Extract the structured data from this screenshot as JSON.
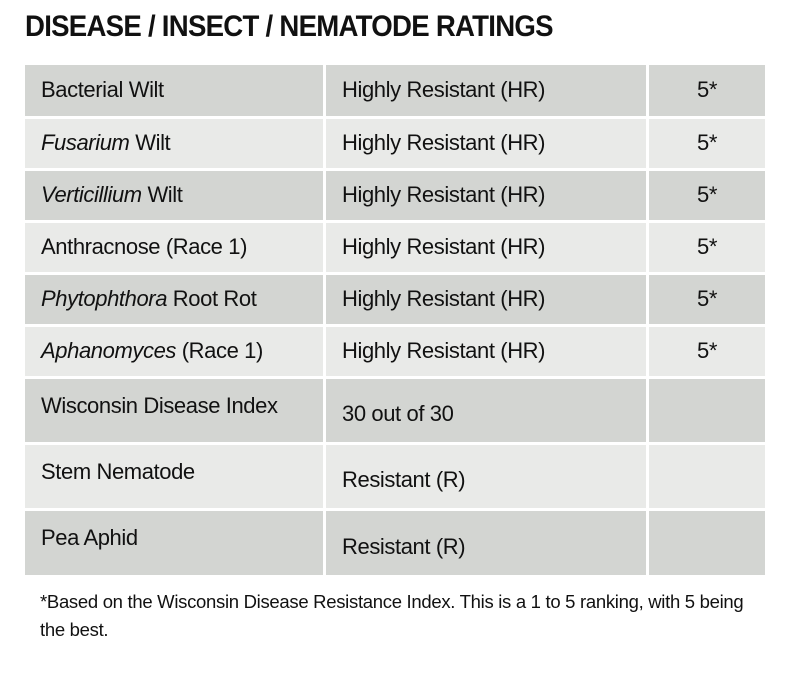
{
  "title": "DISEASE / INSECT / NEMATODE RATINGS",
  "table": {
    "rows": [
      {
        "name": [
          {
            "text": "Bacterial Wilt",
            "italic": false
          }
        ],
        "rating": "Highly Resistant (HR)",
        "score": "5*"
      },
      {
        "name": [
          {
            "text": "Fusarium",
            "italic": true
          },
          {
            "text": " Wilt",
            "italic": false
          }
        ],
        "rating": "Highly Resistant (HR)",
        "score": "5*"
      },
      {
        "name": [
          {
            "text": "Verticillium",
            "italic": true
          },
          {
            "text": " Wilt",
            "italic": false
          }
        ],
        "rating": "Highly Resistant (HR)",
        "score": "5*"
      },
      {
        "name": [
          {
            "text": "Anthracnose (Race 1)",
            "italic": false
          }
        ],
        "rating": "Highly Resistant (HR)",
        "score": "5*"
      },
      {
        "name": [
          {
            "text": "Phytophthora",
            "italic": true
          },
          {
            "text": " Root Rot",
            "italic": false
          }
        ],
        "rating": "Highly Resistant (HR)",
        "score": "5*"
      },
      {
        "name": [
          {
            "text": "Aphanomyces",
            "italic": true
          },
          {
            "text": " (Race 1)",
            "italic": false
          }
        ],
        "rating": "Highly Resistant (HR)",
        "score": "5*"
      },
      {
        "name": [
          {
            "text": "Wisconsin Disease Index",
            "italic": false
          }
        ],
        "rating": "30 out of 30"
      },
      {
        "name": [
          {
            "text": "Stem Nematode",
            "italic": false
          }
        ],
        "rating": "Resistant (R)"
      },
      {
        "name": [
          {
            "text": "Pea Aphid",
            "italic": false
          }
        ],
        "rating": "Resistant (R)"
      }
    ]
  },
  "footnote": "*Based on the Wisconsin Disease Resistance Index. This is a 1 to 5 ranking, with 5 being the best."
}
